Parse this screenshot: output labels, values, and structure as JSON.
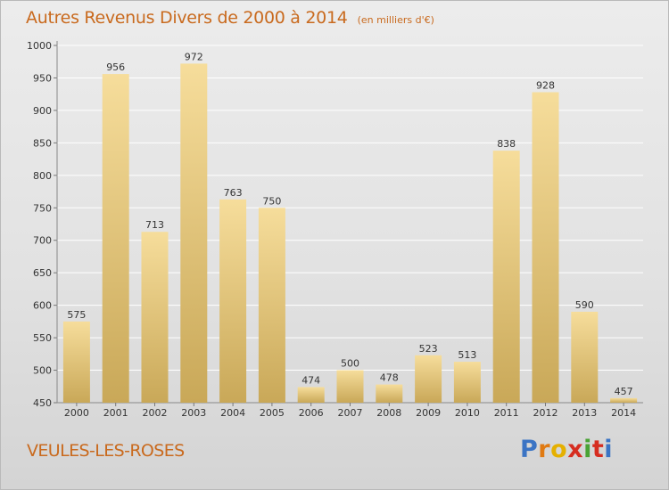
{
  "title": "Autres Revenus Divers de 2000 à 2014",
  "subtitle": "(en milliers d'€)",
  "city": "VEULES-LES-ROSES",
  "logo": {
    "letters": [
      "P",
      "r",
      "o",
      "x",
      "i",
      "t",
      "i"
    ],
    "colors": [
      "#3b74c4",
      "#e07a12",
      "#e5b000",
      "#d62d20",
      "#4aa335",
      "#d62d20",
      "#3b74c4"
    ]
  },
  "colors": {
    "title": "#c96a1e",
    "bar_light": "#f6dd9b",
    "bar_dark": "#c9a858"
  },
  "chart_data": {
    "type": "bar",
    "title": "Autres Revenus Divers de 2000 à 2014",
    "subtitle": "(en milliers d'€)",
    "categories": [
      "2000",
      "2001",
      "2002",
      "2003",
      "2004",
      "2005",
      "2006",
      "2007",
      "2008",
      "2009",
      "2010",
      "2011",
      "2012",
      "2013",
      "2014"
    ],
    "values": [
      575,
      956,
      713,
      972,
      763,
      750,
      474,
      500,
      478,
      523,
      513,
      838,
      928,
      590,
      457
    ],
    "ylim": [
      450,
      1000
    ],
    "yticks": [
      450,
      500,
      550,
      600,
      650,
      700,
      750,
      800,
      850,
      900,
      950,
      1000
    ],
    "grid": true,
    "legend": "none"
  }
}
